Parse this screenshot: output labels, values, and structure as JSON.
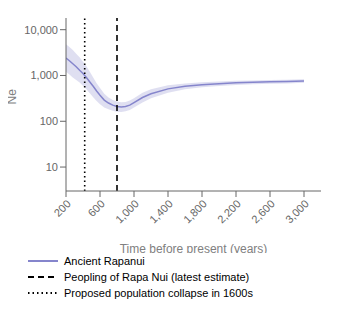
{
  "chart_data": {
    "type": "line",
    "xlabel": "Time before present (years)",
    "ylabel": "Ne",
    "log": "y",
    "legend": "bottom",
    "xlim": [
      200,
      3200
    ],
    "ylim": [
      3,
      18000
    ],
    "xticks": [
      200,
      600,
      {
        "value": 1000,
        "label": "1,000"
      },
      {
        "value": 1400,
        "label": "1,400"
      },
      {
        "value": 1800,
        "label": "1,800"
      },
      {
        "value": 2200,
        "label": "2,200"
      },
      {
        "value": 2600,
        "label": "2,600"
      },
      {
        "value": 3000,
        "label": "3,000"
      }
    ],
    "yticks": [
      10,
      100,
      {
        "value": 1000,
        "label": "1,000"
      },
      {
        "value": 10000,
        "label": "10,000"
      }
    ],
    "x": [
      200,
      240,
      280,
      320,
      360,
      400,
      440,
      480,
      520,
      560,
      600,
      650,
      700,
      750,
      800,
      850,
      900,
      950,
      1000,
      1100,
      1200,
      1400,
      1600,
      1800,
      2000,
      2200,
      2400,
      2600,
      2800,
      3000
    ],
    "series": [
      {
        "name": "Ancient Rapanui",
        "color": "#8585cc",
        "values": [
          2400,
          2100,
          1800,
          1550,
          1300,
          1100,
          900,
          720,
          580,
          460,
          370,
          290,
          250,
          225,
          210,
          205,
          210,
          225,
          255,
          330,
          400,
          510,
          580,
          630,
          660,
          690,
          710,
          725,
          740,
          760
        ]
      }
    ],
    "band": {
      "color": "#b8b8e0",
      "upper": [
        4800,
        4200,
        3600,
        3000,
        2500,
        2000,
        1600,
        1200,
        900,
        680,
        530,
        400,
        330,
        290,
        270,
        260,
        265,
        285,
        320,
        420,
        500,
        610,
        670,
        710,
        740,
        765,
        780,
        795,
        810,
        830
      ],
      "lower": [
        1200,
        1050,
        900,
        800,
        700,
        600,
        500,
        410,
        335,
        278,
        235,
        200,
        182,
        170,
        162,
        160,
        165,
        177,
        200,
        258,
        318,
        420,
        500,
        555,
        590,
        618,
        642,
        658,
        672,
        690
      ]
    },
    "vlines": [
      {
        "x": 800,
        "name": "Peopling of Rapa Nui (latest estimate)",
        "line_style": "dashed",
        "color": "black"
      },
      {
        "x": 420,
        "name": "Proposed population collapse in 1600s",
        "line_style": "dotted",
        "color": "black"
      }
    ]
  }
}
